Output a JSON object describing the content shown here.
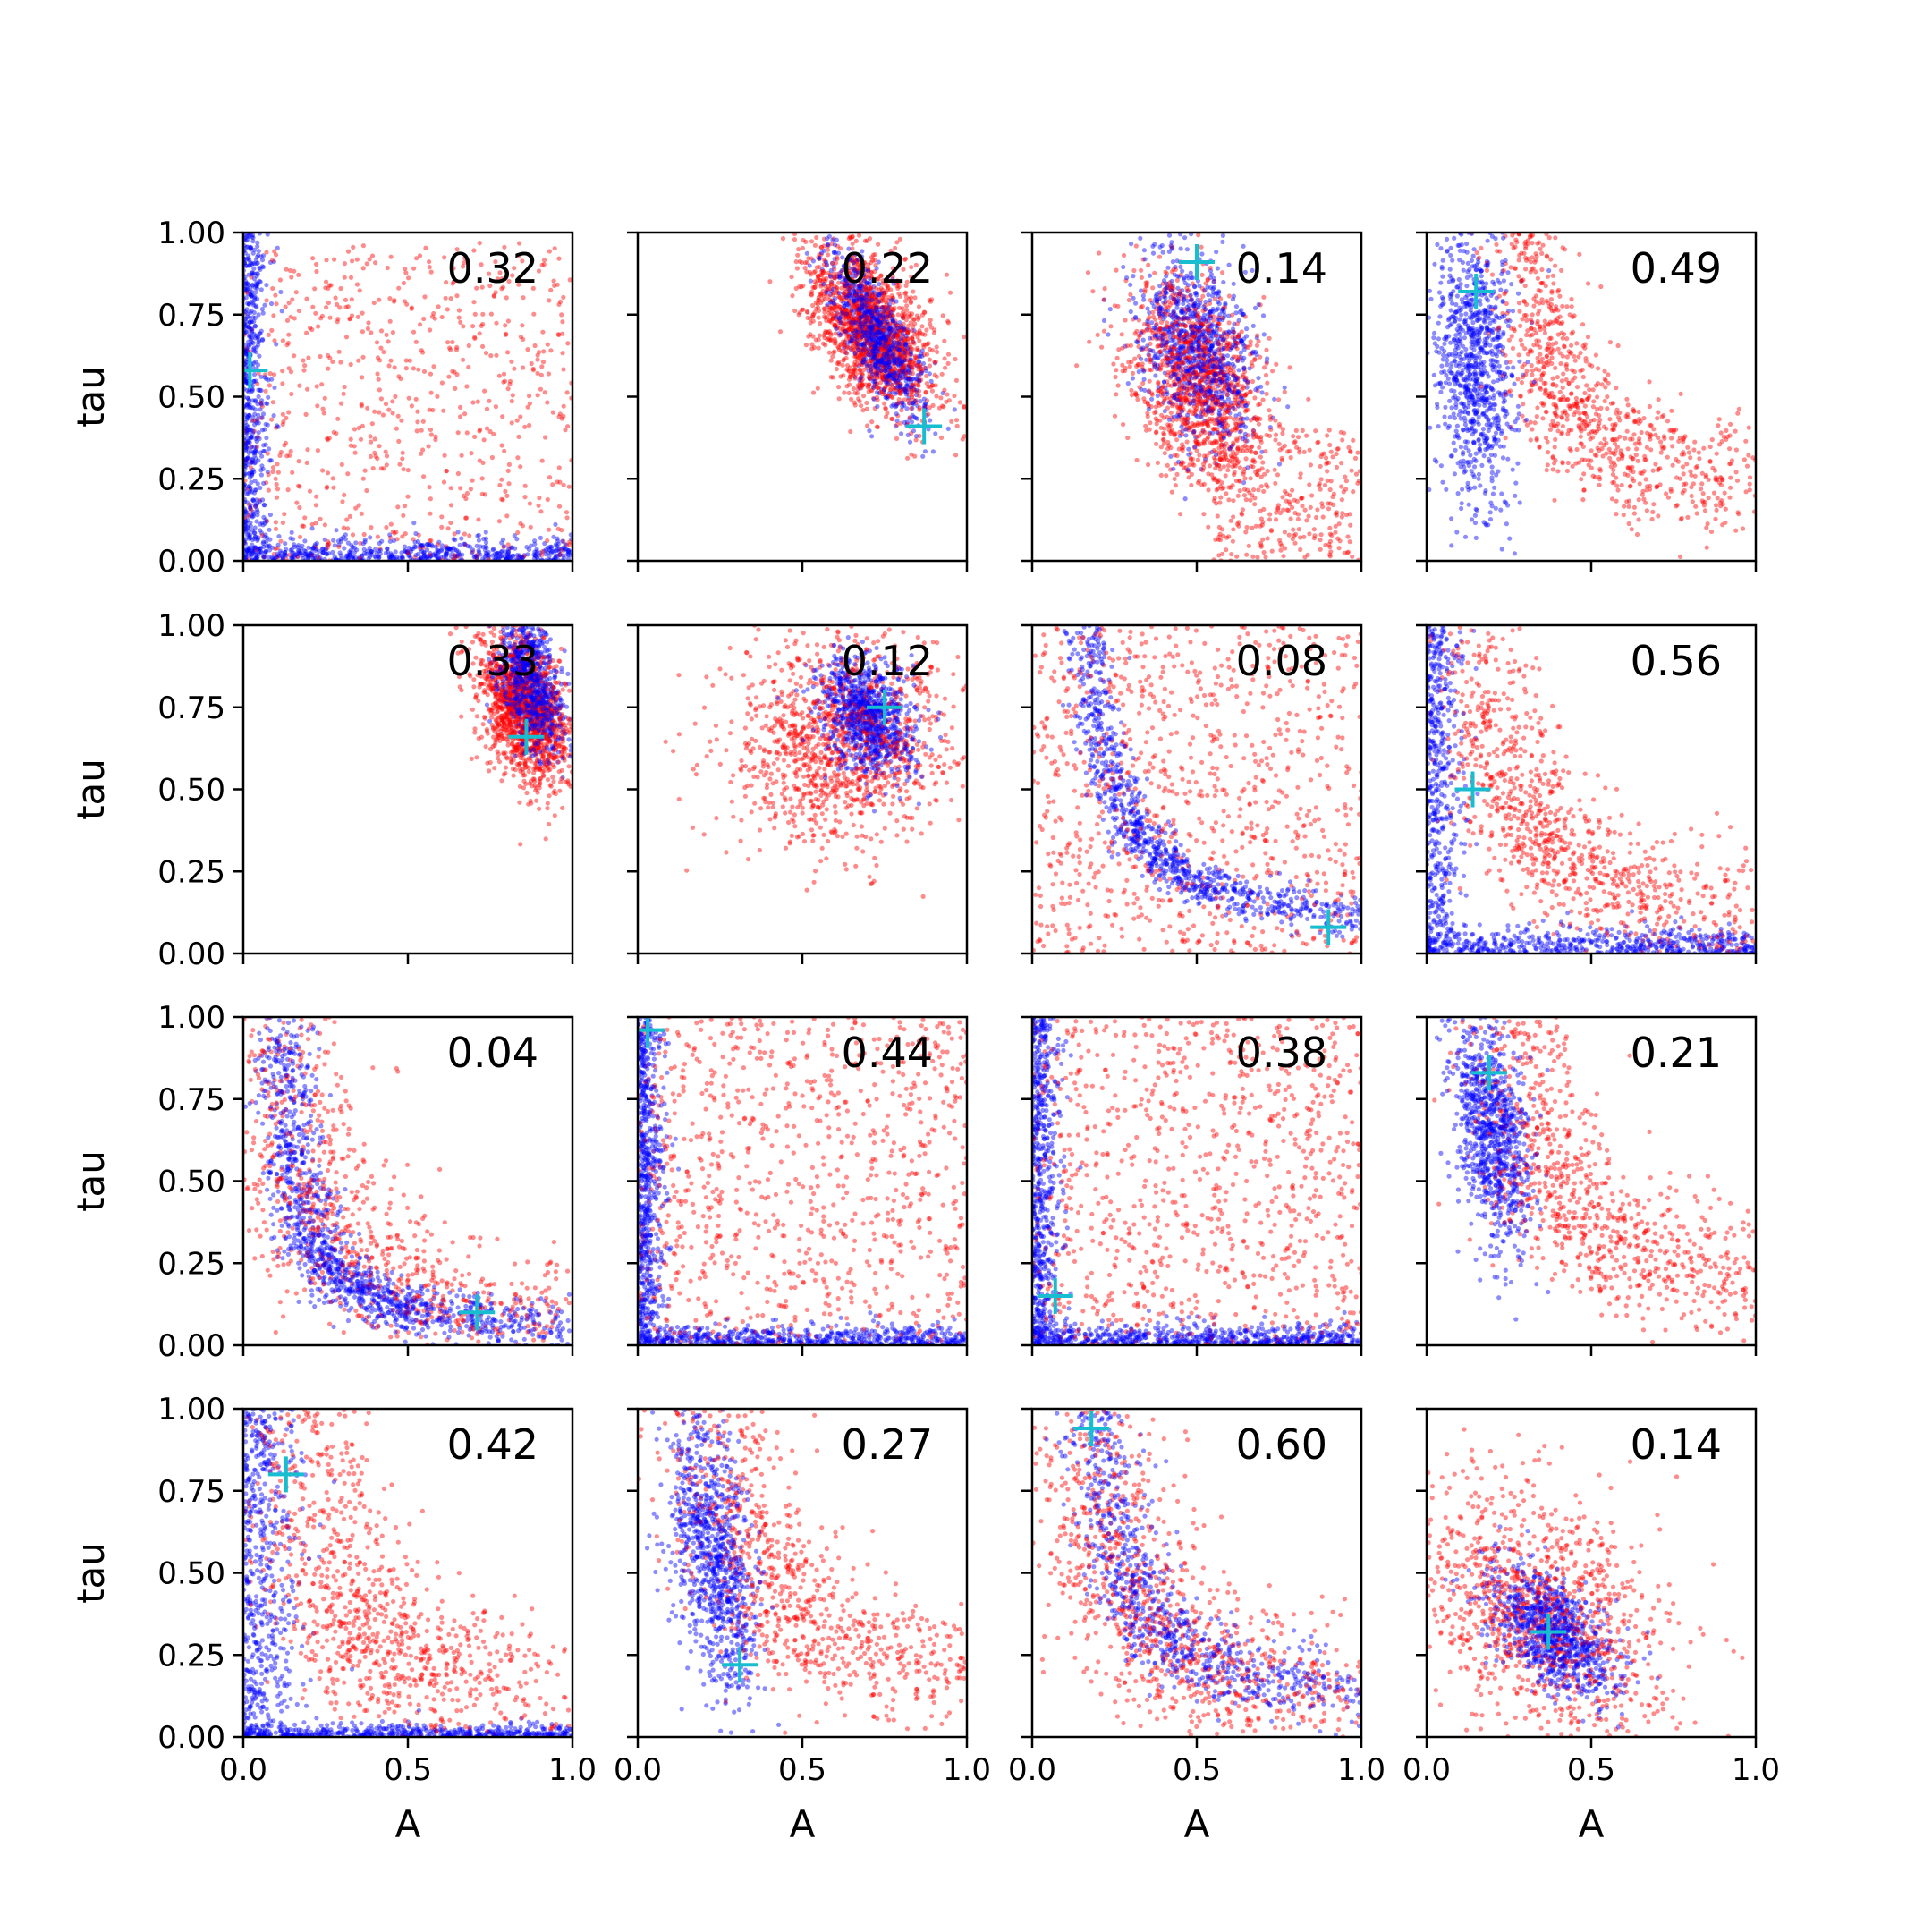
{
  "chart_data": {
    "type": "scatter",
    "title": "",
    "xlabel": "A",
    "ylabel": "tau",
    "xlim": [
      0,
      1
    ],
    "ylim": [
      0,
      1
    ],
    "grid": false,
    "rows": 4,
    "cols": 4,
    "x_ticks": [
      "0.0",
      "0.5",
      "1.0"
    ],
    "y_ticks": [
      "0.00",
      "0.25",
      "0.50",
      "0.75",
      "1.00"
    ],
    "colors": {
      "blue": "#0000ff",
      "red": "#ff0000",
      "marker": "#17becf"
    },
    "panels": [
      {
        "label": "0.32",
        "marker": {
          "x": 0.02,
          "y": 0.58
        },
        "red": {
          "kind": "uniform",
          "n": 700,
          "x": [
            0.0,
            1.0
          ],
          "y": [
            0.0,
            0.97
          ]
        },
        "blue": {
          "kind": "lshape",
          "n": 1100,
          "xd": 0.035,
          "yd": 0.035
        }
      },
      {
        "label": "0.22",
        "marker": {
          "x": 0.87,
          "y": 0.41
        },
        "red": {
          "kind": "blob",
          "n": 1500,
          "cx": 0.71,
          "cy": 0.7,
          "sx": 0.1,
          "sy": 0.13,
          "rho": -0.5
        },
        "blue": {
          "kind": "blob",
          "n": 900,
          "cx": 0.73,
          "cy": 0.68,
          "sx": 0.07,
          "sy": 0.12,
          "rho": -0.75
        }
      },
      {
        "label": "0.14",
        "marker": {
          "x": 0.5,
          "y": 0.91
        },
        "red": {
          "kind": "blob",
          "n": 1200,
          "cx": 0.5,
          "cy": 0.55,
          "sx": 0.11,
          "sy": 0.17,
          "rho": -0.35
        },
        "blue": {
          "kind": "blob",
          "n": 900,
          "cx": 0.5,
          "cy": 0.65,
          "sx": 0.09,
          "sy": 0.14,
          "rho": -0.3
        },
        "red_tail": {
          "n": 300,
          "x": [
            0.55,
            1.0
          ],
          "y": [
            0.0,
            0.4
          ]
        }
      },
      {
        "label": "0.49",
        "marker": {
          "x": 0.15,
          "y": 0.82
        },
        "red": {
          "kind": "curve",
          "n": 1200,
          "ax": 0.16,
          "ay": 0.42,
          "cx": 0.22,
          "cy": 0.15,
          "sx": 0.07,
          "sy": 0.09
        },
        "blue": {
          "kind": "blob",
          "n": 900,
          "cx": 0.14,
          "cy": 0.6,
          "sx": 0.06,
          "sy": 0.22,
          "rho": -0.2
        }
      },
      {
        "label": "0.33",
        "marker": {
          "x": 0.86,
          "y": 0.66
        },
        "red": {
          "kind": "blob",
          "n": 1400,
          "cx": 0.85,
          "cy": 0.75,
          "sx": 0.07,
          "sy": 0.12,
          "rho": -0.4
        },
        "blue": {
          "kind": "blob",
          "n": 900,
          "cx": 0.87,
          "cy": 0.82,
          "sx": 0.05,
          "sy": 0.1,
          "rho": -0.4
        }
      },
      {
        "label": "0.12",
        "marker": {
          "x": 0.75,
          "y": 0.75
        },
        "red": {
          "kind": "blob",
          "n": 1200,
          "cx": 0.62,
          "cy": 0.65,
          "sx": 0.17,
          "sy": 0.16,
          "rho": 0.1
        },
        "blue": {
          "kind": "blob",
          "n": 900,
          "cx": 0.7,
          "cy": 0.72,
          "sx": 0.07,
          "sy": 0.09,
          "rho": -0.3
        }
      },
      {
        "label": "0.08",
        "marker": {
          "x": 0.9,
          "y": 0.08
        },
        "red": {
          "kind": "uniform",
          "n": 900,
          "x": [
            0.0,
            1.0
          ],
          "y": [
            0.0,
            1.0
          ]
        },
        "blue": {
          "kind": "curve",
          "n": 1200,
          "ax": 0.3,
          "ay": 0.28,
          "cx": 0.08,
          "cy": 0.02,
          "sx": 0.04,
          "sy": 0.03
        }
      },
      {
        "label": "0.56",
        "marker": {
          "x": 0.14,
          "y": 0.5
        },
        "red": {
          "kind": "curve",
          "n": 1200,
          "ax": 0.22,
          "ay": 0.35,
          "cx": 0.08,
          "cy": 0.05,
          "sx": 0.09,
          "sy": 0.1
        },
        "blue": {
          "kind": "lshape",
          "n": 1000,
          "xd": 0.05,
          "yd": 0.04
        }
      },
      {
        "label": "0.04",
        "marker": {
          "x": 0.71,
          "y": 0.1
        },
        "red": {
          "kind": "curve",
          "n": 1100,
          "ax": 0.3,
          "ay": 0.3,
          "cx": 0.0,
          "cy": 0.0,
          "sx": 0.12,
          "sy": 0.1
        },
        "blue": {
          "kind": "curve",
          "n": 1200,
          "ax": 0.2,
          "ay": 0.2,
          "cx": 0.08,
          "cy": 0.02,
          "sx": 0.05,
          "sy": 0.04
        }
      },
      {
        "label": "0.44",
        "marker": {
          "x": 0.03,
          "y": 0.96
        },
        "red": {
          "kind": "uniform",
          "n": 900,
          "x": [
            0.0,
            1.0
          ],
          "y": [
            0.0,
            1.0
          ]
        },
        "blue": {
          "kind": "lshape",
          "n": 1200,
          "xd": 0.04,
          "yd": 0.03
        }
      },
      {
        "label": "0.38",
        "marker": {
          "x": 0.07,
          "y": 0.15
        },
        "red": {
          "kind": "uniform",
          "n": 900,
          "x": [
            0.0,
            1.0
          ],
          "y": [
            0.0,
            1.0
          ]
        },
        "blue": {
          "kind": "lshape",
          "n": 1200,
          "xd": 0.04,
          "yd": 0.03
        }
      },
      {
        "label": "0.21",
        "marker": {
          "x": 0.19,
          "y": 0.83
        },
        "red": {
          "kind": "curve",
          "n": 1200,
          "ax": 0.2,
          "ay": 0.4,
          "cx": 0.18,
          "cy": 0.1,
          "sx": 0.1,
          "sy": 0.1
        },
        "blue": {
          "kind": "blob",
          "n": 900,
          "cx": 0.2,
          "cy": 0.65,
          "sx": 0.06,
          "sy": 0.18,
          "rho": -0.4
        }
      },
      {
        "label": "0.42",
        "marker": {
          "x": 0.13,
          "y": 0.8
        },
        "red": {
          "kind": "curve",
          "n": 1200,
          "ax": 0.18,
          "ay": 0.4,
          "cx": 0.1,
          "cy": 0.03,
          "sx": 0.13,
          "sy": 0.12
        },
        "blue": {
          "kind": "lshape",
          "n": 1000,
          "xd": 0.08,
          "yd": 0.02
        }
      },
      {
        "label": "0.27",
        "marker": {
          "x": 0.31,
          "y": 0.22
        },
        "red": {
          "kind": "curve",
          "n": 1200,
          "ax": 0.22,
          "ay": 0.4,
          "cx": 0.15,
          "cy": 0.1,
          "sx": 0.1,
          "sy": 0.1
        },
        "blue": {
          "kind": "blob",
          "n": 900,
          "cx": 0.23,
          "cy": 0.55,
          "sx": 0.07,
          "sy": 0.22,
          "rho": -0.45
        }
      },
      {
        "label": "0.60",
        "marker": {
          "x": 0.18,
          "y": 0.94
        },
        "red": {
          "kind": "curve",
          "n": 1200,
          "ax": 0.2,
          "ay": 0.35,
          "cx": 0.1,
          "cy": 0.05,
          "sx": 0.12,
          "sy": 0.12
        },
        "blue": {
          "kind": "curve",
          "n": 1100,
          "ax": 0.25,
          "ay": 0.35,
          "cx": 0.1,
          "cy": 0.03,
          "sx": 0.06,
          "sy": 0.06
        }
      },
      {
        "label": "0.14",
        "marker": {
          "x": 0.37,
          "y": 0.32
        },
        "red": {
          "kind": "blob",
          "n": 1100,
          "cx": 0.35,
          "cy": 0.38,
          "sx": 0.2,
          "sy": 0.2,
          "rho": -0.4
        },
        "blue": {
          "kind": "blob",
          "n": 900,
          "cx": 0.38,
          "cy": 0.32,
          "sx": 0.1,
          "sy": 0.1,
          "rho": -0.5
        }
      }
    ]
  }
}
